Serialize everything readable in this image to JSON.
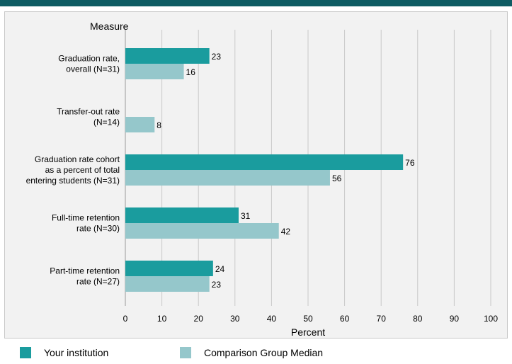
{
  "colors": {
    "institution": "#1a9c9e",
    "comparison": "#95c7cb",
    "grid": "#c8c8c8",
    "header": "#0f5c63"
  },
  "legend": {
    "institution_label": "Your institution",
    "comparison_label": "Comparison Group Median"
  },
  "chart_data": {
    "type": "bar",
    "orientation": "horizontal",
    "title": "",
    "ylabel": "Measure",
    "xlabel": "Percent",
    "xlim": [
      0,
      100
    ],
    "xticks": [
      0,
      10,
      20,
      30,
      40,
      50,
      60,
      70,
      80,
      90,
      100
    ],
    "grid": true,
    "legend_position": "bottom",
    "categories": [
      [
        "Graduation rate,",
        "overall (N=31)"
      ],
      [
        "Transfer-out rate",
        "(N=14)"
      ],
      [
        "Graduation rate cohort",
        "as a percent of total",
        "entering students (N=31)"
      ],
      [
        "Full-time retention",
        "rate (N=30)"
      ],
      [
        "Part-time retention",
        "rate (N=27)"
      ]
    ],
    "series": [
      {
        "name": "Your institution",
        "values": [
          23,
          null,
          76,
          31,
          24
        ]
      },
      {
        "name": "Comparison Group Median",
        "values": [
          16,
          8,
          56,
          42,
          23
        ]
      }
    ]
  }
}
